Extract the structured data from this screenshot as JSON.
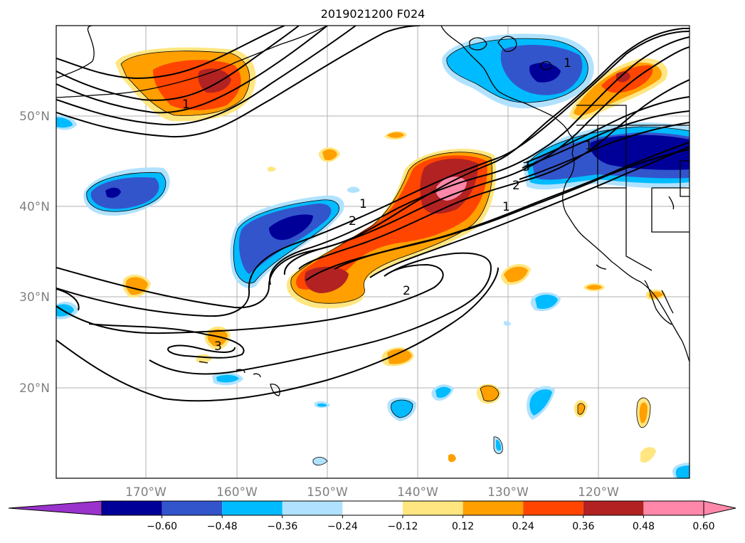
{
  "title": "2019021200 F024",
  "map": {
    "lat_labels": [
      "50°N",
      "40°N",
      "30°N",
      "20°N"
    ],
    "lon_labels": [
      "170°W",
      "160°W",
      "150°W",
      "140°W",
      "130°W",
      "120°W"
    ],
    "gridlines": true,
    "contour_labels": [
      "1",
      "1",
      "2",
      "1",
      "2",
      "3",
      "1",
      "2",
      "3",
      "1"
    ]
  },
  "colorbar": {
    "orientation": "horizontal",
    "extend": "both",
    "tick_labels": [
      "−0.60",
      "−0.48",
      "−0.36",
      "−0.24",
      "−0.12",
      "0.12",
      "0.24",
      "0.36",
      "0.48",
      "0.60"
    ],
    "colors": {
      "below_min": "#9933cc",
      "bins": [
        "#000099",
        "#3355cc",
        "#00bbff",
        "#b0e2ff",
        "#ffffff",
        "#ffe680",
        "#ffa000",
        "#ff4500",
        "#b22222",
        "#ff88aa"
      ],
      "above_max": "#ff88aa"
    }
  }
}
